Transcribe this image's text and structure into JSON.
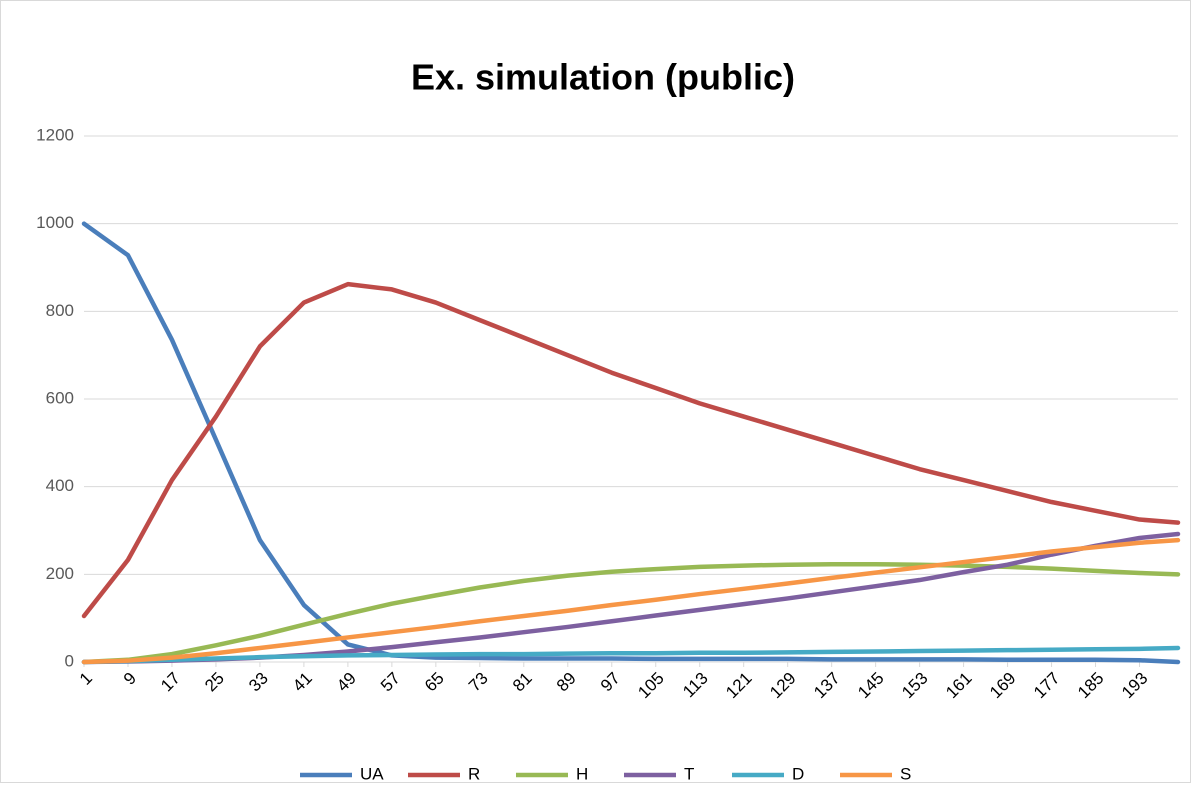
{
  "chart_data": {
    "type": "line",
    "title": "Ex. simulation (public)",
    "x": [
      1,
      9,
      17,
      25,
      33,
      41,
      49,
      57,
      65,
      73,
      81,
      89,
      97,
      105,
      113,
      121,
      129,
      137,
      145,
      153,
      161,
      169,
      177,
      185,
      193,
      200
    ],
    "xlim": [
      1,
      200
    ],
    "xticks": [
      1,
      9,
      17,
      25,
      33,
      41,
      49,
      57,
      65,
      73,
      81,
      89,
      97,
      105,
      113,
      121,
      129,
      137,
      145,
      153,
      161,
      169,
      177,
      185,
      193
    ],
    "ylim": [
      0,
      1200
    ],
    "yticks": [
      0,
      200,
      400,
      600,
      800,
      1000,
      1200
    ],
    "grid": true,
    "legend": "bottom",
    "series": [
      {
        "name": "UA",
        "color": "#4a7ebb",
        "values": [
          1000,
          928,
          735,
          507,
          278,
          130,
          40,
          15,
          10,
          9,
          8,
          8,
          8,
          7,
          7,
          7,
          7,
          6,
          6,
          6,
          6,
          5,
          5,
          5,
          4,
          0
        ]
      },
      {
        "name": "R",
        "color": "#be4b48",
        "values": [
          105,
          233,
          415,
          560,
          720,
          820,
          862,
          850,
          820,
          780,
          740,
          700,
          660,
          625,
          590,
          560,
          530,
          500,
          470,
          440,
          415,
          390,
          365,
          345,
          325,
          318
        ]
      },
      {
        "name": "H",
        "color": "#98b954",
        "values": [
          0,
          5,
          18,
          38,
          60,
          85,
          110,
          133,
          152,
          170,
          185,
          197,
          206,
          212,
          217,
          220,
          222,
          223,
          223,
          222,
          220,
          217,
          213,
          208,
          203,
          200
        ]
      },
      {
        "name": "T",
        "color": "#7d60a0",
        "values": [
          0,
          1,
          3,
          6,
          10,
          16,
          24,
          34,
          45,
          56,
          68,
          80,
          93,
          106,
          119,
          132,
          145,
          159,
          173,
          187,
          205,
          222,
          245,
          265,
          283,
          292
        ]
      },
      {
        "name": "D",
        "color": "#46aac5",
        "values": [
          0,
          2,
          5,
          8,
          11,
          13,
          15,
          16,
          17,
          18,
          18,
          19,
          20,
          20,
          21,
          21,
          22,
          23,
          24,
          25,
          26,
          27,
          28,
          29,
          30,
          32
        ]
      },
      {
        "name": "S",
        "color": "#f79646",
        "values": [
          0,
          3,
          10,
          20,
          32,
          44,
          56,
          68,
          80,
          93,
          105,
          117,
          130,
          142,
          155,
          167,
          179,
          192,
          204,
          216,
          228,
          240,
          252,
          262,
          272,
          278
        ]
      }
    ]
  }
}
